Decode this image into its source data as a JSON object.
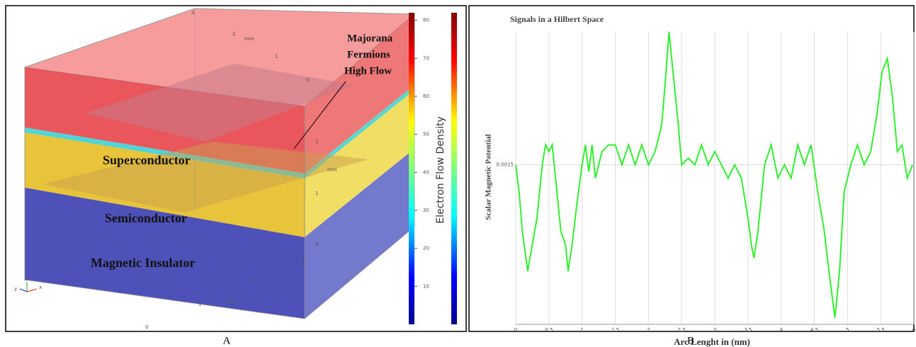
{
  "panel_a": {
    "layers": [
      "Superconductor",
      "Semiconductor",
      "Magnetic Insulator"
    ],
    "annotation": [
      "Majorana",
      "Fermions",
      "High Flow"
    ],
    "colorbar": {
      "title": "Electron Flow Density",
      "lim": [
        0,
        82
      ],
      "ticks": [
        10,
        20,
        30,
        40,
        50,
        60,
        70,
        80
      ]
    },
    "axis_unit": "mm",
    "axis_ticks": [
      "0",
      "1",
      "2",
      "3"
    ],
    "triad": [
      "y",
      "z",
      "x"
    ]
  },
  "captions": [
    "A",
    "B"
  ],
  "chart_data": {
    "type": "line",
    "title": "Signals in a Hilbert Space",
    "x_label": "Arc Lenght in (nm)",
    "y_label": "Scalar Magnetic Potential",
    "x": [
      0,
      0.05,
      0.1,
      0.18,
      0.25,
      0.32,
      0.4,
      0.45,
      0.5,
      0.55,
      0.6,
      0.68,
      0.75,
      0.79,
      0.85,
      0.92,
      1.0,
      1.05,
      1.1,
      1.15,
      1.2,
      1.3,
      1.4,
      1.5,
      1.6,
      1.7,
      1.8,
      1.9,
      2.0,
      2.1,
      2.2,
      2.25,
      2.31,
      2.37,
      2.45,
      2.5,
      2.6,
      2.7,
      2.8,
      2.9,
      3.0,
      3.1,
      3.2,
      3.3,
      3.4,
      3.5,
      3.55,
      3.59,
      3.65,
      3.75,
      3.85,
      3.95,
      4.05,
      4.15,
      4.25,
      4.35,
      4.45,
      4.55,
      4.65,
      4.72,
      4.81,
      4.88,
      4.95,
      5.05,
      5.15,
      5.25,
      5.35,
      5.45,
      5.52,
      5.6,
      5.68,
      5.75,
      5.82,
      5.9,
      5.98
    ],
    "series": [
      {
        "name": "Scalar Magnetic Potential",
        "color": "#33ee33",
        "values": [
          0.0015,
          0.0013,
          0.001,
          0.0007,
          0.0009,
          0.0011,
          0.0015,
          0.00165,
          0.0016,
          0.00165,
          0.0014,
          0.001,
          0.0009,
          0.0007,
          0.0009,
          0.0012,
          0.0015,
          0.00165,
          0.00145,
          0.00165,
          0.0014,
          0.0016,
          0.00165,
          0.00165,
          0.0015,
          0.00165,
          0.0015,
          0.00165,
          0.0015,
          0.0016,
          0.0018,
          0.0021,
          0.0025,
          0.0022,
          0.0018,
          0.0015,
          0.00155,
          0.0015,
          0.00165,
          0.0015,
          0.0016,
          0.0015,
          0.0014,
          0.0015,
          0.0014,
          0.0011,
          0.0009,
          0.0008,
          0.001,
          0.0015,
          0.00165,
          0.0014,
          0.0015,
          0.0014,
          0.00165,
          0.0015,
          0.00165,
          0.0013,
          0.001,
          0.0007,
          0.00035,
          0.0007,
          0.0013,
          0.0015,
          0.00165,
          0.0015,
          0.0016,
          0.0019,
          0.0022,
          0.0023,
          0.002,
          0.0016,
          0.00165,
          0.0014,
          0.0015
        ]
      }
    ],
    "xlim": [
      0,
      6
    ],
    "xticks": [
      0,
      0.5,
      1,
      1.5,
      2,
      2.5,
      3,
      3.5,
      4,
      4.5,
      5,
      5.5,
      6
    ],
    "ylim": [
      0.0003,
      0.0025
    ],
    "yticks": [
      0.0015
    ],
    "grid": true
  }
}
